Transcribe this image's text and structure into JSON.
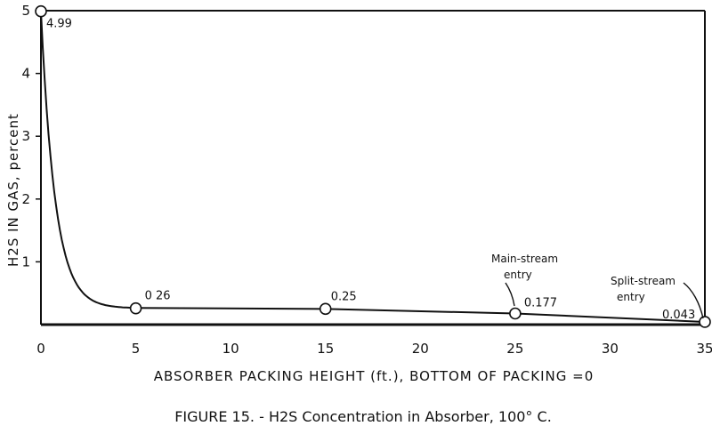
{
  "chart_data": {
    "type": "line",
    "x": [
      0,
      5,
      15,
      25,
      35
    ],
    "series": [
      {
        "values": [
          4.99,
          0.26,
          0.25,
          0.177,
          0.043
        ]
      }
    ],
    "data_labels": [
      "4.99",
      "0 26",
      "0.25",
      "0.177",
      "0.043"
    ],
    "xticks": [
      "0",
      "5",
      "10",
      "15",
      "20",
      "25",
      "30",
      "35"
    ],
    "yticks": [
      "",
      "1",
      "2",
      "3",
      "4",
      "5"
    ],
    "xlim": [
      0,
      35
    ],
    "ylim": [
      0,
      5
    ],
    "xlabel": "ABSORBER PACKING HEIGHT (ft.), BOTTOM OF PACKING =0",
    "ylabel": "H2S IN GAS, percent",
    "annotations": {
      "main_stream_line1": "Main-stream",
      "main_stream_line2": "entry",
      "split_stream_line1": "Split-stream",
      "split_stream_line2": "entry"
    },
    "caption": "FIGURE 15. - H2S Concentration in Absorber, 100° C.",
    "grid": false,
    "line_color": "#111111"
  }
}
